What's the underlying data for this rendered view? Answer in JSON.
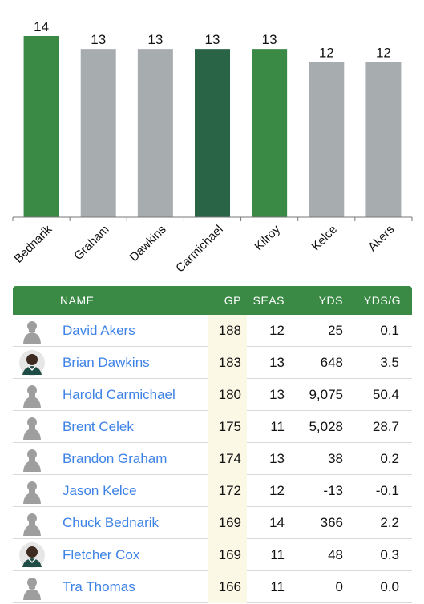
{
  "colors": {
    "header_green": "#3a8a46",
    "bar_green": "#3a8a46",
    "bar_dark_green": "#2a6446",
    "bar_gray": "#a7acaf",
    "link_blue": "#3d82e6",
    "gp_highlight": "#fcf8e6"
  },
  "chart_data": {
    "type": "bar",
    "categories": [
      "Bednarik",
      "Graham",
      "Dawkins",
      "Carmichael",
      "Kilroy",
      "Kelce",
      "Akers"
    ],
    "values": [
      14,
      13,
      13,
      13,
      13,
      12,
      12
    ],
    "bar_colors": [
      "#3a8a46",
      "#a7acaf",
      "#a7acaf",
      "#2a6446",
      "#3a8a46",
      "#a7acaf",
      "#a7acaf"
    ],
    "title": "",
    "xlabel": "",
    "ylabel": "",
    "ylim": [
      0,
      14
    ],
    "grid": false,
    "data_labels": true
  },
  "table": {
    "headers": {
      "name": "NAME",
      "gp": "GP",
      "seas": "SEAS",
      "yds": "YDS",
      "ydsg": "YDS/G"
    },
    "rows": [
      {
        "name": "David Akers",
        "gp": "188",
        "seas": "12",
        "yds": "25",
        "ydsg": "0.1",
        "avatar": "silhouette-icon"
      },
      {
        "name": "Brian Dawkins",
        "gp": "183",
        "seas": "13",
        "yds": "648",
        "ydsg": "3.5",
        "avatar": "player-photo-icon"
      },
      {
        "name": "Harold Carmichael",
        "gp": "180",
        "seas": "13",
        "yds": "9,075",
        "ydsg": "50.4",
        "avatar": "silhouette-icon"
      },
      {
        "name": "Brent Celek",
        "gp": "175",
        "seas": "11",
        "yds": "5,028",
        "ydsg": "28.7",
        "avatar": "silhouette-icon"
      },
      {
        "name": "Brandon Graham",
        "gp": "174",
        "seas": "13",
        "yds": "38",
        "ydsg": "0.2",
        "avatar": "silhouette-icon"
      },
      {
        "name": "Jason Kelce",
        "gp": "172",
        "seas": "12",
        "yds": "-13",
        "ydsg": "-0.1",
        "avatar": "silhouette-icon"
      },
      {
        "name": "Chuck Bednarik",
        "gp": "169",
        "seas": "14",
        "yds": "366",
        "ydsg": "2.2",
        "avatar": "silhouette-icon"
      },
      {
        "name": "Fletcher Cox",
        "gp": "169",
        "seas": "11",
        "yds": "48",
        "ydsg": "0.3",
        "avatar": "player-photo-icon"
      },
      {
        "name": "Tra Thomas",
        "gp": "166",
        "seas": "11",
        "yds": "0",
        "ydsg": "0.0",
        "avatar": "silhouette-icon"
      }
    ]
  }
}
